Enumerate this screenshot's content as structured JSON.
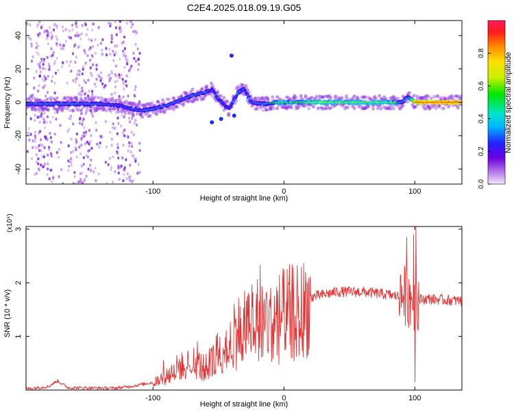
{
  "page": {
    "title": "C2E4.2025.018.09.19.G05"
  },
  "chart_data": [
    {
      "type": "heatmap",
      "title": "C2E4.2025.018.09.19.G05",
      "xlabel": "Height of straight line (km)",
      "ylabel": "Frequency (Hz)",
      "xlim": [
        -197,
        136
      ],
      "ylim": [
        -49,
        49
      ],
      "x_ticks": [
        -100,
        0,
        100
      ],
      "x_tick_labels": [
        "-100",
        "0",
        "100"
      ],
      "y_ticks": [
        -40,
        -20,
        0,
        20,
        40
      ],
      "y_tick_labels": [
        "-40",
        "-20",
        "0",
        "20",
        "40"
      ],
      "grid": false,
      "colorbar": {
        "label": "Normalized spectral amplitude",
        "range": [
          0,
          1
        ],
        "ticks": [
          0,
          0.2,
          0.4,
          0.6,
          0.8
        ],
        "tick_labels": [
          "0.0",
          "0.2",
          "0.4",
          "0.6",
          "0.8"
        ],
        "colormap": [
          "#f4e6ff",
          "#b070e8",
          "#6a00e0",
          "#2222ff",
          "#00b4ff",
          "#00e6c8",
          "#00e600",
          "#c8f000",
          "#ffe000",
          "#ff8000",
          "#ff1a1a",
          "#ff1a60"
        ]
      },
      "ridge": [
        {
          "x": -197,
          "y": -1,
          "a": 0.35
        },
        {
          "x": -180,
          "y": -1,
          "a": 0.4
        },
        {
          "x": -160,
          "y": -1,
          "a": 0.4
        },
        {
          "x": -140,
          "y": -1,
          "a": 0.35
        },
        {
          "x": -125,
          "y": -2,
          "a": 0.3
        },
        {
          "x": -110,
          "y": -5,
          "a": 0.35
        },
        {
          "x": -100,
          "y": -4,
          "a": 0.35
        },
        {
          "x": -90,
          "y": -2,
          "a": 0.35
        },
        {
          "x": -80,
          "y": 1,
          "a": 0.35
        },
        {
          "x": -70,
          "y": 4,
          "a": 0.35
        },
        {
          "x": -60,
          "y": 6,
          "a": 0.35
        },
        {
          "x": -55,
          "y": 8,
          "a": 0.3
        },
        {
          "x": -50,
          "y": 2,
          "a": 0.3
        },
        {
          "x": -42,
          "y": -4,
          "a": 0.3
        },
        {
          "x": -35,
          "y": 6,
          "a": 0.35
        },
        {
          "x": -30,
          "y": 8,
          "a": 0.3
        },
        {
          "x": -25,
          "y": 0,
          "a": 0.35
        },
        {
          "x": -15,
          "y": -1,
          "a": 0.4
        },
        {
          "x": -5,
          "y": 0,
          "a": 0.6
        },
        {
          "x": 10,
          "y": 0,
          "a": 0.6
        },
        {
          "x": 30,
          "y": 0,
          "a": 0.65
        },
        {
          "x": 50,
          "y": 0,
          "a": 0.65
        },
        {
          "x": 70,
          "y": 0,
          "a": 0.65
        },
        {
          "x": 85,
          "y": 0,
          "a": 0.6
        },
        {
          "x": 90,
          "y": 0,
          "a": 0.4
        },
        {
          "x": 95,
          "y": 3,
          "a": 0.35
        },
        {
          "x": 100,
          "y": 0,
          "a": 0.9
        },
        {
          "x": 115,
          "y": 0,
          "a": 0.95
        },
        {
          "x": 136,
          "y": 0,
          "a": 0.95
        }
      ]
    },
    {
      "type": "line",
      "xlabel": "Height of straight line (km)",
      "ylabel": "SNR (10 * v/v)",
      "y_multiplier": "(x10⁴)",
      "xlim": [
        -197,
        136
      ],
      "ylim": [
        0,
        3.05
      ],
      "x_ticks": [
        -100,
        0,
        100
      ],
      "x_tick_labels": [
        "-100",
        "0",
        "100"
      ],
      "y_ticks": [
        1,
        2,
        3
      ],
      "y_tick_labels": [
        "1",
        "2",
        "3"
      ],
      "grid": false,
      "line_color": "#e83030",
      "envelope": [
        {
          "x": -197,
          "y": 0.03
        },
        {
          "x": -180,
          "y": 0.07
        },
        {
          "x": -173,
          "y": 0.18
        },
        {
          "x": -165,
          "y": 0.05
        },
        {
          "x": -130,
          "y": 0.04
        },
        {
          "x": -118,
          "y": 0.07
        },
        {
          "x": -100,
          "y": 0.15
        },
        {
          "x": -90,
          "y": 0.3
        },
        {
          "x": -80,
          "y": 0.5
        },
        {
          "x": -70,
          "y": 0.6
        },
        {
          "x": -60,
          "y": 0.45
        },
        {
          "x": -50,
          "y": 0.8
        },
        {
          "x": -40,
          "y": 1.1
        },
        {
          "x": -30,
          "y": 1.4
        },
        {
          "x": -20,
          "y": 1.5
        },
        {
          "x": -10,
          "y": 1.5
        },
        {
          "x": 0,
          "y": 1.6
        },
        {
          "x": 20,
          "y": 1.75
        },
        {
          "x": 40,
          "y": 1.85
        },
        {
          "x": 60,
          "y": 1.85
        },
        {
          "x": 80,
          "y": 1.8
        },
        {
          "x": 90,
          "y": 1.75
        },
        {
          "x": 100,
          "y": 1.7
        },
        {
          "x": 110,
          "y": 1.72
        },
        {
          "x": 136,
          "y": 1.68
        }
      ],
      "spikes": [
        {
          "x": -92,
          "y": 0.55
        },
        {
          "x": -78,
          "y": 0.7
        },
        {
          "x": -66,
          "y": 0.9
        },
        {
          "x": -38,
          "y": 1.6
        },
        {
          "x": -28,
          "y": 1.75
        },
        {
          "x": -24,
          "y": 1.55
        },
        {
          "x": -18,
          "y": 2.33
        },
        {
          "x": -10,
          "y": 1.9
        },
        {
          "x": 89,
          "y": 2.15
        },
        {
          "x": 94,
          "y": 2.85
        },
        {
          "x": 99,
          "y": 2.9
        },
        {
          "x": 101,
          "y": 3.05
        },
        {
          "x": 100,
          "y": 0.15
        }
      ]
    }
  ]
}
